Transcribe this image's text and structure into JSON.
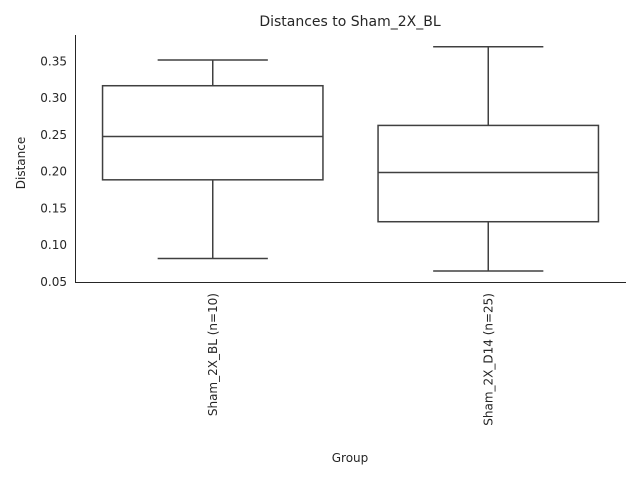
{
  "chart_data": {
    "type": "box",
    "title": "Distances to Sham_2X_BL",
    "xlabel": "Group",
    "ylabel": "Distance",
    "ylim": [
      0.05,
      0.386
    ],
    "yticks": [
      0.05,
      0.1,
      0.15,
      0.2,
      0.25,
      0.3,
      0.35
    ],
    "ytick_labels": [
      "0.05",
      "0.10",
      "0.15",
      "0.20",
      "0.25",
      "0.30",
      "0.35"
    ],
    "categories": [
      "Sham_2X_BL (n=10)",
      "Sham_2X_D14 (n=25)"
    ],
    "boxes": [
      {
        "whisker_low": 0.082,
        "q1": 0.189,
        "median": 0.248,
        "q3": 0.317,
        "whisker_high": 0.352
      },
      {
        "whisker_low": 0.065,
        "q1": 0.132,
        "median": 0.199,
        "q3": 0.263,
        "whisker_high": 0.37
      }
    ],
    "grid": false,
    "box_color": "#ffffff",
    "line_color": "#404040"
  }
}
